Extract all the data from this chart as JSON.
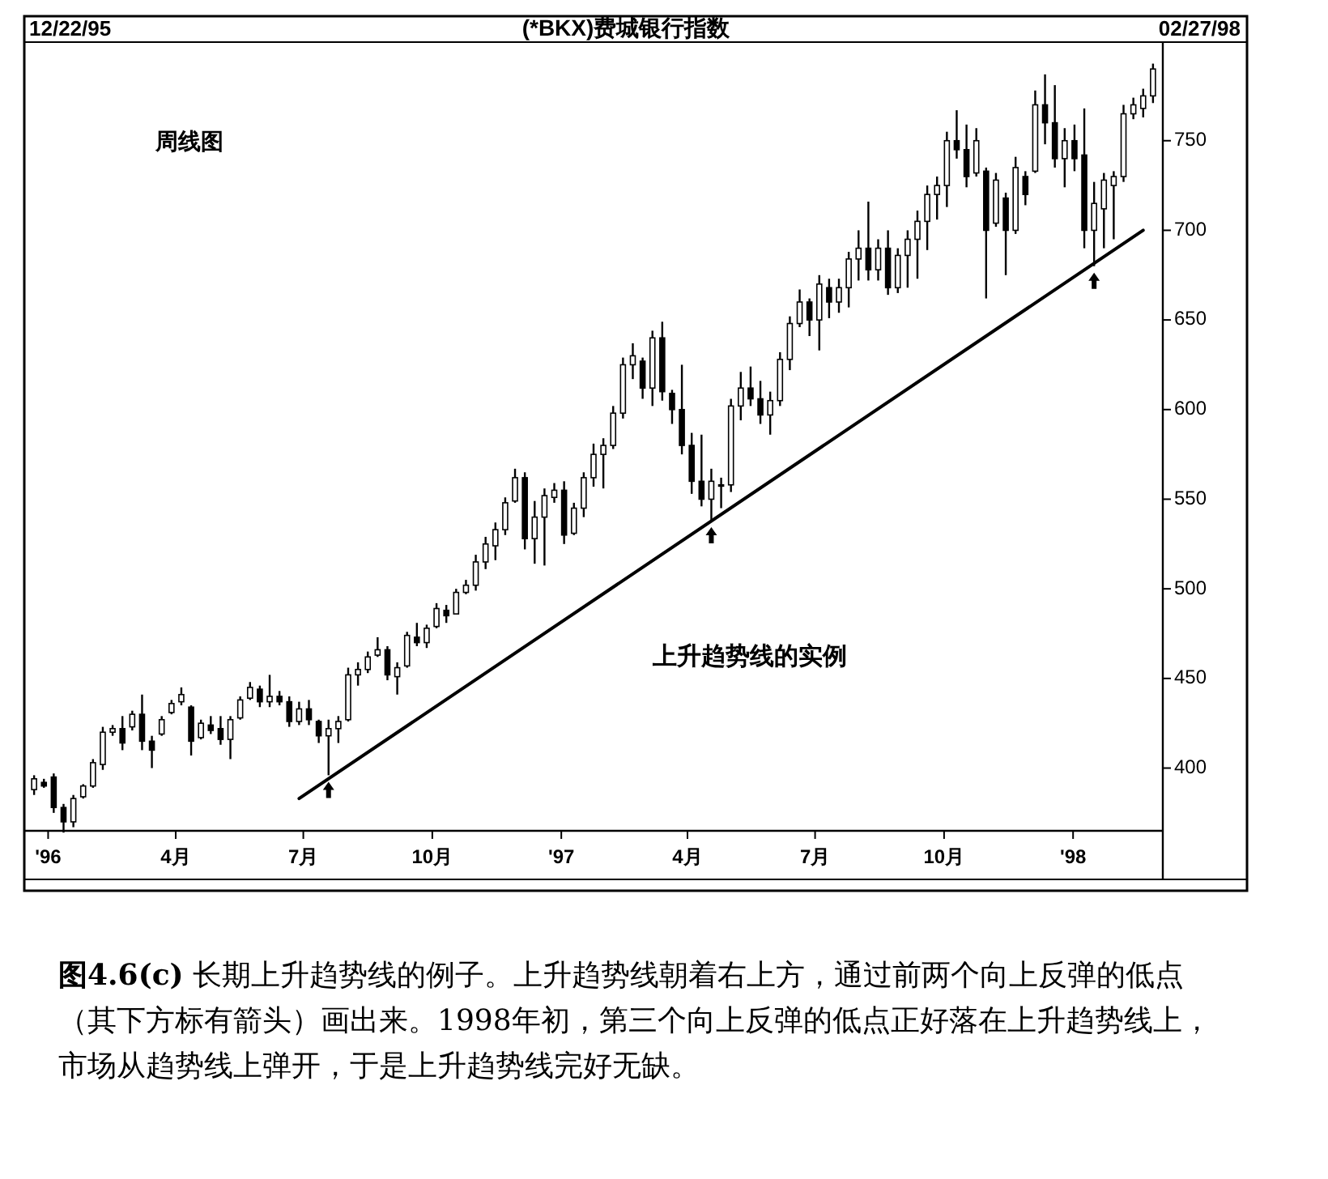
{
  "chart_data": {
    "type": "candlestick",
    "title": "(*BKX)费城银行指数",
    "color": "#000000",
    "x": [
      "1995-12-22",
      "1995-12-29",
      "1996-01-05",
      "1996-01-12",
      "1996-01-19",
      "1996-01-26",
      "1996-02-02",
      "1996-02-09",
      "1996-02-16",
      "1996-02-23",
      "1996-03-01",
      "1996-03-08",
      "1996-03-15",
      "1996-03-22",
      "1996-03-29",
      "1996-04-05",
      "1996-04-12",
      "1996-04-19",
      "1996-04-26",
      "1996-05-03",
      "1996-05-10",
      "1996-05-17",
      "1996-05-24",
      "1996-05-31",
      "1996-06-07",
      "1996-06-14",
      "1996-06-21",
      "1996-06-28",
      "1996-07-05",
      "1996-07-12",
      "1996-07-19",
      "1996-07-26",
      "1996-08-02",
      "1996-08-09",
      "1996-08-16",
      "1996-08-23",
      "1996-08-30",
      "1996-09-06",
      "1996-09-13",
      "1996-09-20",
      "1996-09-27",
      "1996-10-04",
      "1996-10-11",
      "1996-10-18",
      "1996-10-25",
      "1996-11-01",
      "1996-11-08",
      "1996-11-15",
      "1996-11-22",
      "1996-11-29",
      "1996-12-06",
      "1996-12-13",
      "1996-12-20",
      "1996-12-27",
      "1997-01-03",
      "1997-01-10",
      "1997-01-17",
      "1997-01-24",
      "1997-01-31",
      "1997-02-07",
      "1997-02-14",
      "1997-02-21",
      "1997-02-28",
      "1997-03-07",
      "1997-03-14",
      "1997-03-21",
      "1997-03-28",
      "1997-04-04",
      "1997-04-11",
      "1997-04-18",
      "1997-04-25",
      "1997-05-02",
      "1997-05-09",
      "1997-05-16",
      "1997-05-23",
      "1997-05-30",
      "1997-06-06",
      "1997-06-13",
      "1997-06-20",
      "1997-06-27",
      "1997-07-04",
      "1997-07-11",
      "1997-07-18",
      "1997-07-25",
      "1997-08-01",
      "1997-08-08",
      "1997-08-15",
      "1997-08-22",
      "1997-08-29",
      "1997-09-05",
      "1997-09-12",
      "1997-09-19",
      "1997-09-26",
      "1997-10-03",
      "1997-10-10",
      "1997-10-17",
      "1997-10-24",
      "1997-10-31",
      "1997-11-07",
      "1997-11-14",
      "1997-11-21",
      "1997-11-28",
      "1997-12-05",
      "1997-12-12",
      "1997-12-19",
      "1997-12-26",
      "1998-01-02",
      "1998-01-09",
      "1998-01-16",
      "1998-01-23",
      "1998-01-30",
      "1998-02-06",
      "1998-02-13",
      "1998-02-20",
      "1998-02-27"
    ],
    "ohlc": [
      [
        388,
        396,
        385,
        394
      ],
      [
        392,
        394,
        389,
        390
      ],
      [
        395,
        397,
        375,
        378
      ],
      [
        378,
        380,
        364,
        370
      ],
      [
        370,
        385,
        367,
        383
      ],
      [
        384,
        391,
        383,
        390
      ],
      [
        390,
        405,
        389,
        403
      ],
      [
        402,
        423,
        399,
        420
      ],
      [
        420,
        424,
        418,
        422
      ],
      [
        422,
        429,
        410,
        414
      ],
      [
        423,
        432,
        421,
        430
      ],
      [
        430,
        441,
        410,
        415
      ],
      [
        415,
        418,
        400,
        410
      ],
      [
        419,
        429,
        418,
        427
      ],
      [
        431,
        438,
        430,
        436
      ],
      [
        437,
        445,
        435,
        441
      ],
      [
        434,
        435,
        407,
        415
      ],
      [
        417,
        427,
        416,
        425
      ],
      [
        424,
        429,
        419,
        421
      ],
      [
        422,
        429,
        413,
        416
      ],
      [
        416,
        429,
        405,
        427
      ],
      [
        428,
        440,
        427,
        438
      ],
      [
        439,
        448,
        438,
        445
      ],
      [
        444,
        446,
        434,
        437
      ],
      [
        437,
        452,
        434,
        440
      ],
      [
        440,
        443,
        435,
        437
      ],
      [
        437,
        440,
        423,
        426
      ],
      [
        426,
        437,
        424,
        433
      ],
      [
        433,
        438,
        424,
        427
      ],
      [
        426,
        427,
        414,
        418
      ],
      [
        418,
        427,
        396,
        422
      ],
      [
        422,
        429,
        414,
        426
      ],
      [
        427,
        456,
        426,
        452
      ],
      [
        452,
        459,
        446,
        455
      ],
      [
        455,
        465,
        453,
        462
      ],
      [
        463,
        473,
        462,
        466
      ],
      [
        466,
        468,
        449,
        452
      ],
      [
        451,
        459,
        441,
        456
      ],
      [
        457,
        476,
        456,
        474
      ],
      [
        473,
        481,
        468,
        470
      ],
      [
        470,
        480,
        467,
        478
      ],
      [
        479,
        492,
        478,
        489
      ],
      [
        488,
        491,
        481,
        485
      ],
      [
        486,
        500,
        486,
        498
      ],
      [
        498,
        505,
        497,
        502
      ],
      [
        502,
        519,
        499,
        515
      ],
      [
        515,
        529,
        511,
        525
      ],
      [
        524,
        537,
        516,
        533
      ],
      [
        533,
        551,
        530,
        548
      ],
      [
        549,
        567,
        548,
        562
      ],
      [
        562,
        565,
        522,
        528
      ],
      [
        528,
        549,
        514,
        540
      ],
      [
        540,
        556,
        513,
        552
      ],
      [
        551,
        559,
        548,
        555
      ],
      [
        555,
        560,
        525,
        530
      ],
      [
        531,
        548,
        530,
        545
      ],
      [
        545,
        565,
        540,
        562
      ],
      [
        562,
        581,
        557,
        575
      ],
      [
        575,
        584,
        556,
        580
      ],
      [
        580,
        602,
        578,
        598
      ],
      [
        598,
        629,
        595,
        625
      ],
      [
        625,
        637,
        617,
        630
      ],
      [
        627,
        629,
        606,
        612
      ],
      [
        612,
        644,
        602,
        640
      ],
      [
        640,
        649,
        605,
        610
      ],
      [
        609,
        611,
        592,
        600
      ],
      [
        600,
        625,
        575,
        580
      ],
      [
        580,
        587,
        553,
        560
      ],
      [
        560,
        586,
        546,
        550
      ],
      [
        550,
        567,
        538,
        560
      ],
      [
        558,
        562,
        545,
        558
      ],
      [
        558,
        606,
        554,
        602
      ],
      [
        602,
        621,
        594,
        612
      ],
      [
        612,
        624,
        602,
        606
      ],
      [
        606,
        616,
        592,
        597
      ],
      [
        597,
        610,
        586,
        605
      ],
      [
        605,
        632,
        602,
        628
      ],
      [
        628,
        652,
        622,
        648
      ],
      [
        648,
        667,
        646,
        660
      ],
      [
        660,
        662,
        641,
        650
      ],
      [
        650,
        675,
        633,
        670
      ],
      [
        668,
        673,
        651,
        660
      ],
      [
        660,
        673,
        654,
        668
      ],
      [
        668,
        688,
        657,
        684
      ],
      [
        684,
        700,
        672,
        690
      ],
      [
        690,
        716,
        672,
        678
      ],
      [
        678,
        695,
        672,
        690
      ],
      [
        690,
        700,
        664,
        668
      ],
      [
        668,
        690,
        665,
        686
      ],
      [
        686,
        700,
        668,
        695
      ],
      [
        695,
        711,
        673,
        705
      ],
      [
        705,
        725,
        689,
        720
      ],
      [
        720,
        730,
        706,
        725
      ],
      [
        725,
        755,
        713,
        750
      ],
      [
        750,
        767,
        740,
        745
      ],
      [
        745,
        759,
        724,
        730
      ],
      [
        732,
        757,
        730,
        750
      ],
      [
        733,
        735,
        662,
        700
      ],
      [
        704,
        732,
        702,
        728
      ],
      [
        718,
        721,
        675,
        700
      ],
      [
        700,
        741,
        698,
        735
      ],
      [
        730,
        733,
        714,
        720
      ],
      [
        733,
        778,
        732,
        770
      ],
      [
        770,
        787,
        748,
        760
      ],
      [
        760,
        781,
        735,
        740
      ],
      [
        740,
        757,
        724,
        750
      ],
      [
        750,
        759,
        733,
        740
      ],
      [
        742,
        768,
        690,
        700
      ],
      [
        700,
        727,
        680,
        715
      ],
      [
        712,
        732,
        690,
        728
      ],
      [
        725,
        733,
        695,
        730
      ],
      [
        730,
        770,
        727,
        765
      ],
      [
        765,
        774,
        762,
        770
      ],
      [
        768,
        779,
        763,
        775
      ],
      [
        775,
        793,
        771,
        790
      ]
    ],
    "series": [
      {
        "type": "line",
        "color": "#000000",
        "x": [
          "1996-06-28",
          "1998-02-20"
        ],
        "values": [
          383,
          700
        ]
      }
    ],
    "xlim": [
      "1995-12-15",
      "1998-03-06"
    ],
    "xticks": [
      {
        "value": "1996-01-01",
        "label": "'96"
      },
      {
        "value": "1996-04-01",
        "label": "4月"
      },
      {
        "value": "1996-07-01",
        "label": "7月"
      },
      {
        "value": "1996-10-01",
        "label": "10月"
      },
      {
        "value": "1997-01-01",
        "label": "'97"
      },
      {
        "value": "1997-04-01",
        "label": "4月"
      },
      {
        "value": "1997-07-01",
        "label": "7月"
      },
      {
        "value": "1997-10-01",
        "label": "10月"
      },
      {
        "value": "1998-01-01",
        "label": "'98"
      }
    ],
    "ylim": [
      365,
      805
    ],
    "yticks": [
      400,
      450,
      500,
      550,
      600,
      650,
      700,
      750
    ],
    "annotations": [
      "12/22/95",
      "02/27/98",
      "周线图",
      "上升趋势线的实例",
      "图4.6(c)  长期上升趋势线的例子。上升趋势线朝着右上方，通过前两个向上反弹的低点（其下方标有箭头）画出来。1998年初，第三个向上反弹的低点正好落在上升趋势线上，市场从趋势线上弹开，于是上升趋势线完好无缺。"
    ]
  }
}
